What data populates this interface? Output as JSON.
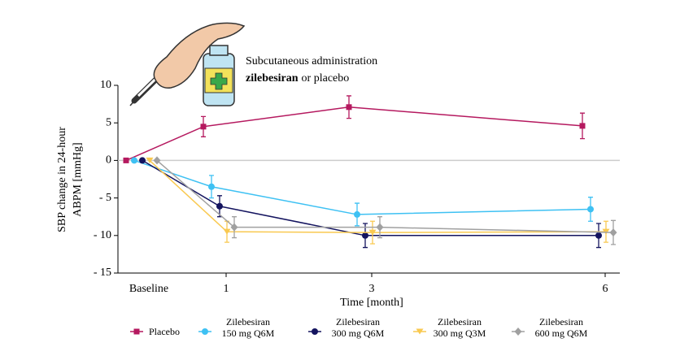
{
  "chart_data": {
    "type": "line",
    "annotation": {
      "line1": "Subcutaneous administration",
      "bold": "zilebesiran",
      "rest": "or placebo"
    },
    "ylabel": [
      "SBP change in 24-hour",
      "ABPM [mmHg]"
    ],
    "xlabel": "Time [month]",
    "categories": [
      "Baseline",
      "1",
      "3",
      "6"
    ],
    "ylim": [
      -15,
      10
    ],
    "yticks": [
      10,
      5,
      0,
      {
        "value": -5,
        "label": "- 5"
      },
      {
        "value": -10,
        "label": "- 10"
      },
      {
        "value": -15,
        "label": "- 15"
      }
    ],
    "grid": false,
    "zero_line": true,
    "series": [
      {
        "name": "Placebo",
        "color": "#b5195f",
        "marker": "square",
        "values": [
          0,
          4.5,
          7.1,
          4.6
        ],
        "errors": [
          null,
          1.35,
          1.5,
          1.7
        ]
      },
      {
        "name": "Zilebesiran\n150 mg Q6M",
        "color": "#3ec1f3",
        "marker": "circle",
        "values": [
          0,
          -3.5,
          -7.2,
          -6.5
        ],
        "errors": [
          null,
          1.5,
          1.5,
          1.6
        ]
      },
      {
        "name": "Zilebesiran\n300 mg Q6M",
        "color": "#14145f",
        "marker": "circle",
        "values": [
          0,
          -6.1,
          -10.0,
          -10.0
        ],
        "errors": [
          null,
          1.4,
          1.6,
          1.6
        ]
      },
      {
        "name": "Zilebesiran\n300 mg Q3M",
        "color": "#f9c950",
        "marker": "triangle-down",
        "values": [
          0,
          -9.5,
          -9.6,
          -9.5
        ],
        "errors": [
          null,
          1.4,
          1.5,
          1.4
        ]
      },
      {
        "name": "Zilebesiran\n600 mg Q6M",
        "color": "#a0a0a0",
        "marker": "diamond",
        "values": [
          0,
          -8.9,
          -8.9,
          -9.6
        ],
        "errors": [
          null,
          1.4,
          1.4,
          1.6
        ]
      }
    ]
  }
}
